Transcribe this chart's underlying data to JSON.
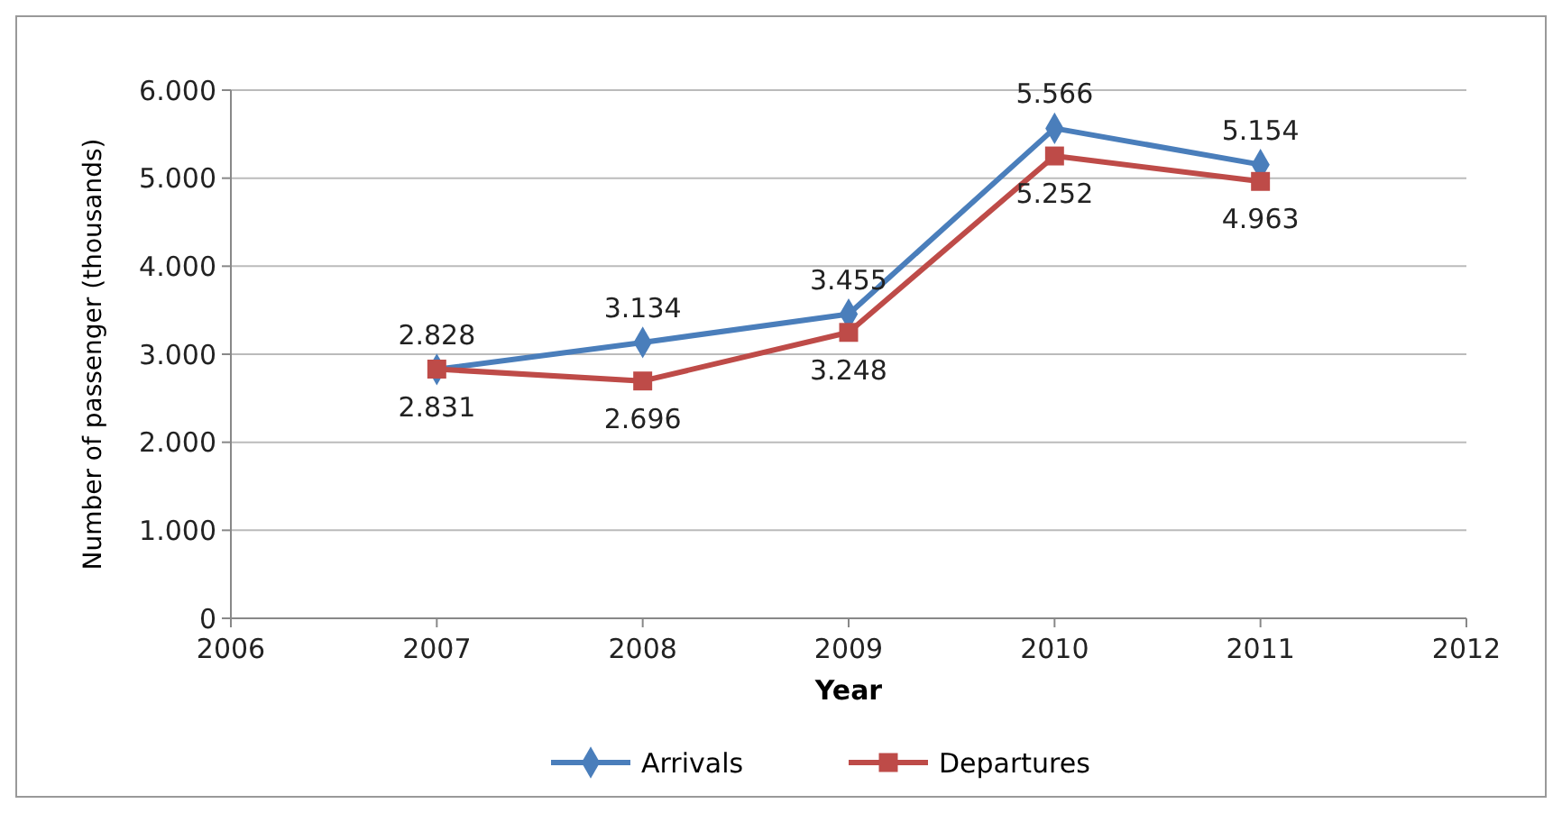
{
  "chart_data": {
    "type": "line",
    "xlabel": "Year",
    "ylabel": "Number of passenger (thousands)",
    "x": [
      2007,
      2008,
      2009,
      2010,
      2011
    ],
    "xlim": [
      2006,
      2012
    ],
    "xticks": [
      2006,
      2007,
      2008,
      2009,
      2010,
      2011,
      2012
    ],
    "ylim": [
      0,
      6000
    ],
    "yticks": [
      0,
      {
        "value": 1000,
        "label": "1.000"
      },
      {
        "value": 2000,
        "label": "2.000"
      },
      {
        "value": 3000,
        "label": "3.000"
      },
      {
        "value": 4000,
        "label": "4.000"
      },
      {
        "value": 5000,
        "label": "5.000"
      },
      {
        "value": 6000,
        "label": "6.000"
      }
    ],
    "grid": "y",
    "legend": "bottom",
    "line_style": "solid",
    "series": [
      {
        "name": "Arrivals",
        "color": "#4a7ebb",
        "marker": "diamond",
        "values": [
          2828,
          3134,
          3455,
          5566,
          5154
        ],
        "value_labels": [
          "2.828",
          "3.134",
          "3.455",
          "5.566",
          "5.154"
        ]
      },
      {
        "name": "Departures",
        "color": "#be4b48",
        "marker": "square",
        "values": [
          2831,
          2696,
          3248,
          5252,
          4963
        ],
        "value_labels": [
          "2.831",
          "2.696",
          "3.248",
          "5.252",
          "4.963"
        ]
      }
    ]
  }
}
